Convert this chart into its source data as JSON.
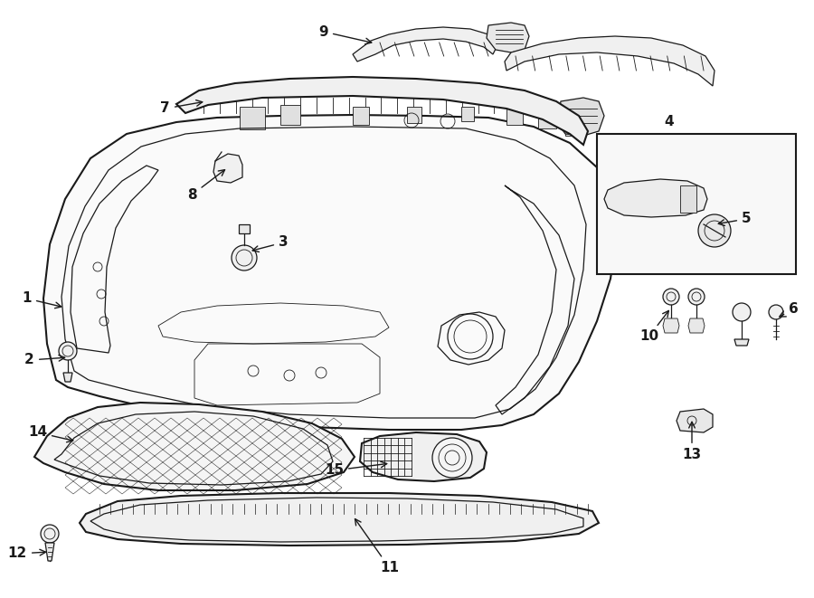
{
  "background_color": "#ffffff",
  "line_color": "#1a1a1a",
  "fig_width": 9.0,
  "fig_height": 6.61,
  "dpi": 100
}
